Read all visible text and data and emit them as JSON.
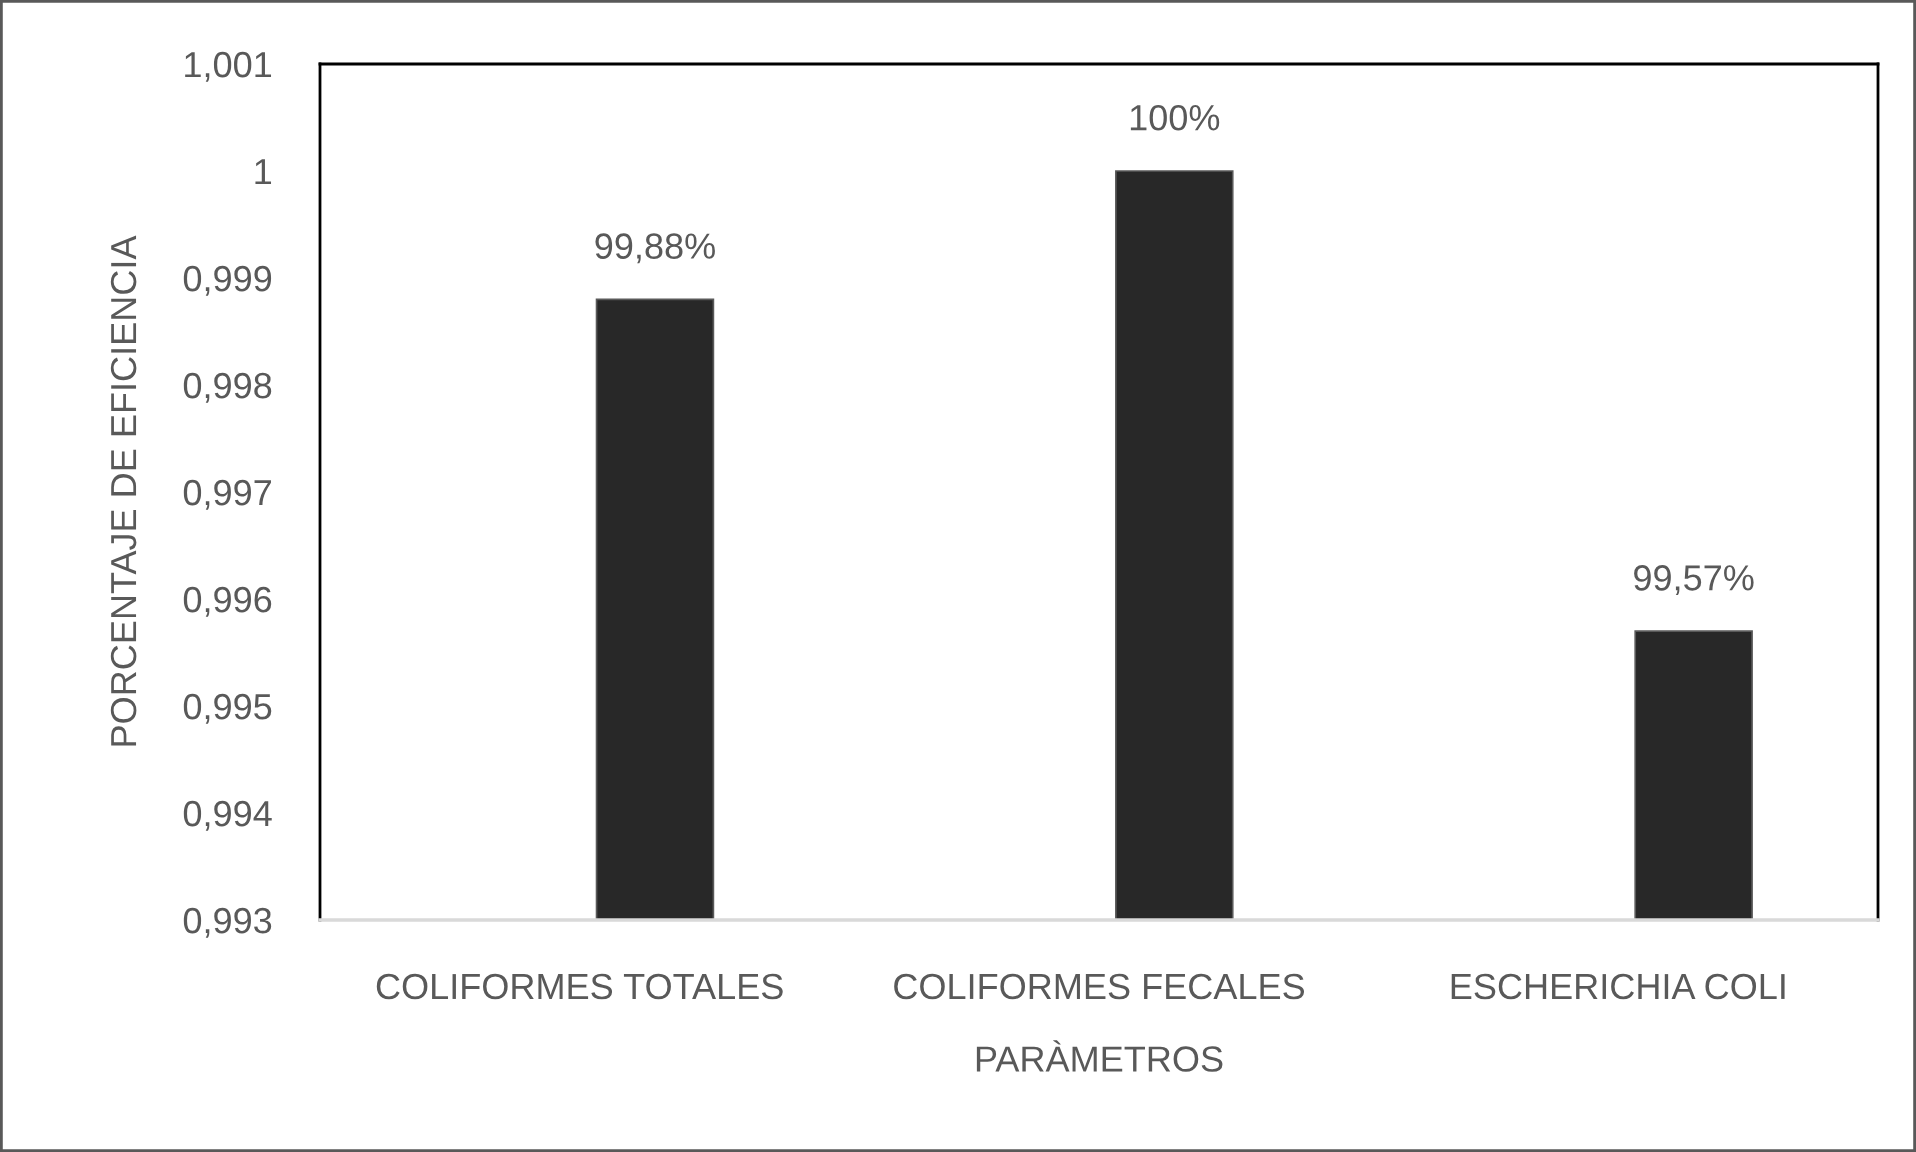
{
  "chart_data": {
    "type": "bar",
    "xlabel": "PARÀMETROS",
    "ylabel": "PORCENTAJE DE EFICIENCIA",
    "categories": [
      "COLIFORMES TOTALES",
      "COLIFORMES FECALES",
      "ESCHERICHIA COLI"
    ],
    "values": [
      0.9988,
      1.0,
      0.9957
    ],
    "color": "#282828",
    "value_labels": [
      "99,88%",
      "100%",
      "99,57%"
    ],
    "ylim": [
      0.993,
      1.001
    ],
    "yticks": [
      {
        "value": 0.993,
        "label": "0,993"
      },
      {
        "value": 0.994,
        "label": "0,994"
      },
      {
        "value": 0.995,
        "label": "0,995"
      },
      {
        "value": 0.996,
        "label": "0,996"
      },
      {
        "value": 0.997,
        "label": "0,997"
      },
      {
        "value": 0.998,
        "label": "0,998"
      },
      {
        "value": 0.999,
        "label": "0,999"
      },
      {
        "value": 1,
        "label": "1"
      },
      {
        "value": 1.001,
        "label": "1,001"
      }
    ]
  }
}
